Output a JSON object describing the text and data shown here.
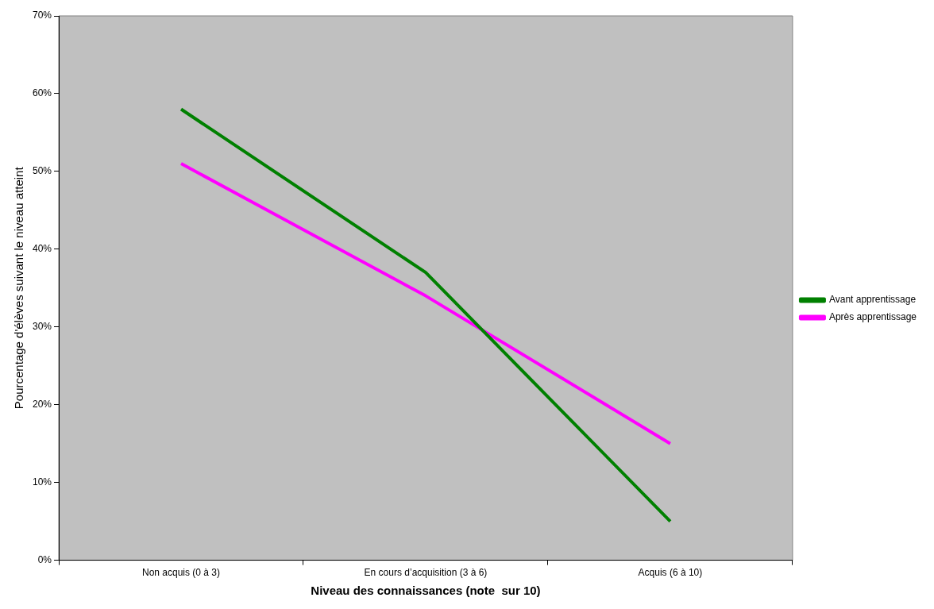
{
  "chart_data": {
    "type": "line",
    "xlabel": "Niveau des connaissances (note  sur 10)",
    "ylabel": "Pourcentage d'élèves suivant le niveau atteint",
    "categories": [
      "Non acquis (0 à 3)",
      "En cours d’acquisition (3 à 6)",
      "Acquis (6 à 10)"
    ],
    "series": [
      {
        "name": "Avant apprentissage",
        "color": "#008000",
        "values": [
          58,
          37,
          5
        ]
      },
      {
        "name": "Après apprentissage",
        "color": "#ff00ff",
        "values": [
          51,
          34,
          15
        ]
      }
    ],
    "ylim": [
      0,
      70
    ],
    "yticks": [
      {
        "value": 0,
        "label": "0%"
      },
      {
        "value": 10,
        "label": "10%"
      },
      {
        "value": 20,
        "label": "20%"
      },
      {
        "value": 30,
        "label": "30%"
      },
      {
        "value": 40,
        "label": "40%"
      },
      {
        "value": 50,
        "label": "50%"
      },
      {
        "value": 60,
        "label": "60%"
      },
      {
        "value": 70,
        "label": "70%"
      }
    ],
    "grid": false,
    "legend": "right",
    "marker": "none",
    "line_style": "solid"
  }
}
